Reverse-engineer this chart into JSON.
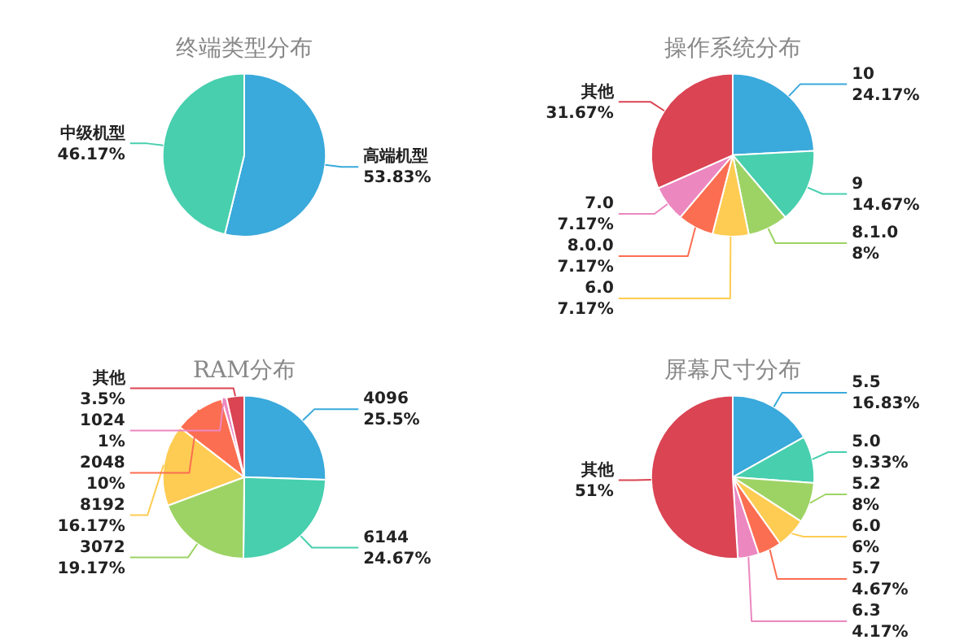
{
  "chart_data": [
    {
      "type": "pie",
      "title": "终端类型分布",
      "categories": [
        "高端机型",
        "中级机型"
      ],
      "values": [
        53.83,
        46.17
      ],
      "value_labels": [
        "53.83%",
        "46.17%"
      ],
      "colors": [
        "#3aa9db",
        "#47cfae"
      ],
      "legend": false
    },
    {
      "type": "pie",
      "title": "操作系统分布",
      "categories": [
        "10",
        "9",
        "8.1.0",
        "6.0",
        "8.0.0",
        "7.0",
        "其他"
      ],
      "values": [
        24.17,
        14.67,
        8,
        7.17,
        7.17,
        7.17,
        31.67
      ],
      "value_labels": [
        "24.17%",
        "14.67%",
        "8%",
        "7.17%",
        "7.17%",
        "7.17%",
        "31.67%"
      ],
      "colors": [
        "#3aa9db",
        "#47cfae",
        "#9dd364",
        "#fecc52",
        "#fc6e51",
        "#ec87c0",
        "#da4453"
      ],
      "legend": false
    },
    {
      "type": "pie",
      "title": "RAM分布",
      "categories": [
        "4096",
        "6144",
        "3072",
        "8192",
        "2048",
        "1024",
        "其他"
      ],
      "values": [
        25.5,
        24.67,
        19.17,
        16.17,
        10,
        1,
        3.5
      ],
      "value_labels": [
        "25.5%",
        "24.67%",
        "19.17%",
        "16.17%",
        "10%",
        "1%",
        "3.5%"
      ],
      "colors": [
        "#3aa9db",
        "#47cfae",
        "#9dd364",
        "#fecc52",
        "#fc6e51",
        "#ec87c0",
        "#da4453"
      ],
      "legend": false
    },
    {
      "type": "pie",
      "title": "屏幕尺寸分布",
      "categories": [
        "5.5",
        "5.0",
        "5.2",
        "6.0",
        "5.7",
        "6.3",
        "其他"
      ],
      "values": [
        16.83,
        9.33,
        8,
        6,
        4.67,
        4.17,
        51
      ],
      "value_labels": [
        "16.83%",
        "9.33%",
        "8%",
        "6%",
        "4.67%",
        "4.17%",
        "51%"
      ],
      "colors": [
        "#3aa9db",
        "#47cfae",
        "#9dd364",
        "#fecc52",
        "#fc6e51",
        "#ec87c0",
        "#da4453"
      ],
      "legend": false
    }
  ]
}
